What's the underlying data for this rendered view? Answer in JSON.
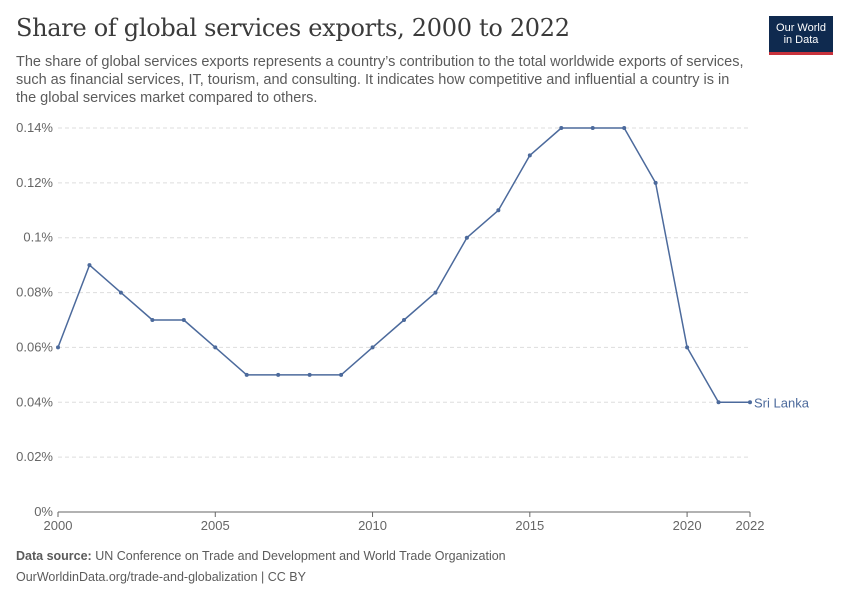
{
  "header": {
    "title": "Share of global services exports, 2000 to 2022",
    "subtitle": "The share of global services exports represents a country’s contribution to the total worldwide exports of services, such as financial services, IT, tourism, and consulting. It indicates how competitive and influential a country is in the global services market compared to others."
  },
  "logo": {
    "line1": "Our World",
    "line2": "in Data"
  },
  "footer": {
    "source_label": "Data source:",
    "source_text": "UN Conference on Trade and Development and World Trade Organization",
    "credit": "OurWorldinData.org/trade-and-globalization | CC BY"
  },
  "colors": {
    "series": "#4c6a9c",
    "grid": "#dddddd",
    "axis": "#666666"
  },
  "chart_data": {
    "type": "line",
    "title": "Share of global services exports, 2000 to 2022",
    "xlim": [
      2000,
      2022
    ],
    "ylim": [
      0,
      0.14
    ],
    "x_ticks": [
      2000,
      2005,
      2010,
      2015,
      2020,
      2022
    ],
    "y_ticks": [
      0,
      0.02,
      0.04,
      0.06,
      0.08,
      0.1,
      0.12,
      0.14
    ],
    "y_tick_labels": [
      "0%",
      "0.02%",
      "0.04%",
      "0.06%",
      "0.08%",
      "0.1%",
      "0.12%",
      "0.14%"
    ],
    "grid": "horizontal dashed",
    "series": [
      {
        "name": "Sri Lanka",
        "x": [
          2000,
          2001,
          2002,
          2003,
          2004,
          2005,
          2006,
          2007,
          2008,
          2009,
          2010,
          2011,
          2012,
          2013,
          2014,
          2015,
          2016,
          2017,
          2018,
          2019,
          2020,
          2021,
          2022
        ],
        "values": [
          0.06,
          0.09,
          0.08,
          0.07,
          0.07,
          0.06,
          0.05,
          0.05,
          0.05,
          0.05,
          0.06,
          0.07,
          0.08,
          0.1,
          0.11,
          0.13,
          0.14,
          0.14,
          0.14,
          0.12,
          0.06,
          0.04,
          0.04
        ]
      }
    ]
  }
}
